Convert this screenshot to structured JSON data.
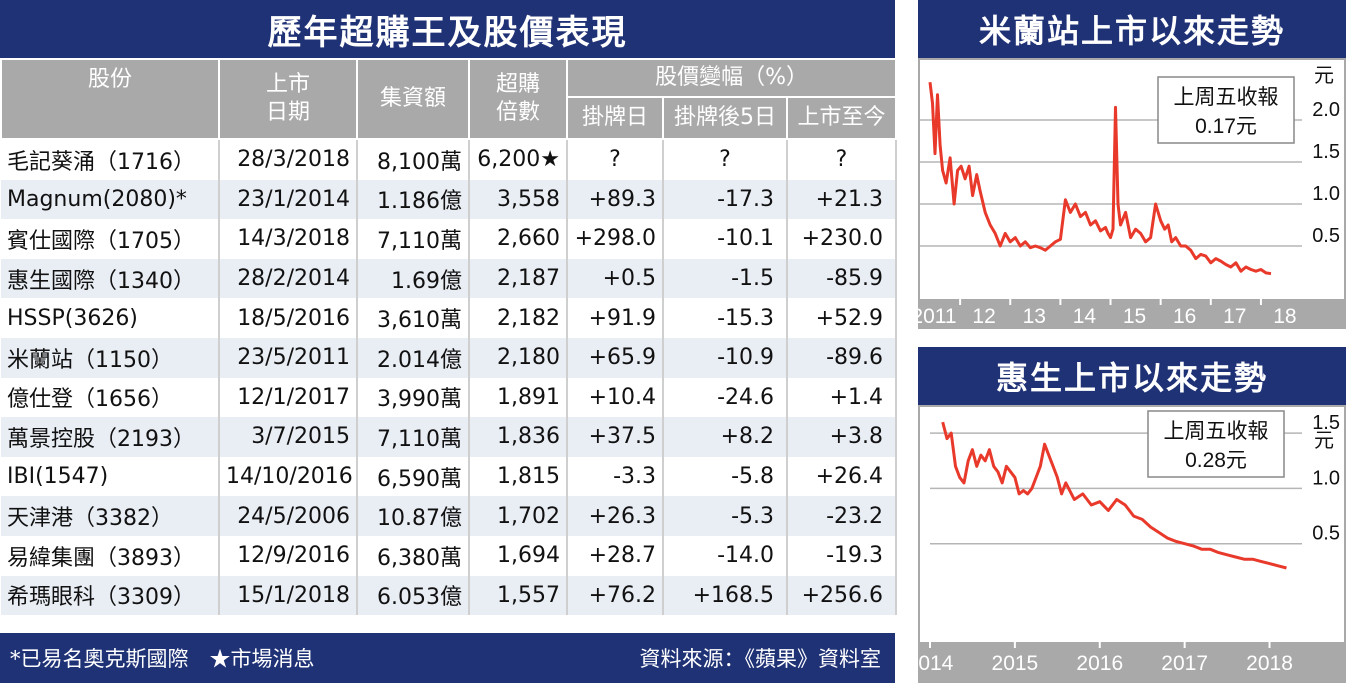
{
  "table": {
    "title": "歷年超購王及股價表現",
    "headers": {
      "stock": "股份",
      "listing_date": [
        "上市",
        "日期"
      ],
      "amount": "集資額",
      "oversub": [
        "超購",
        "倍數"
      ],
      "change_group": "股價變幅（%）",
      "change_cols": [
        "掛牌日",
        "掛牌後5日",
        "上市至今"
      ]
    },
    "rows": [
      {
        "name": "毛記葵涌（1716）",
        "date": "28/3/2018",
        "amount": "8,100萬",
        "oversub": "6,200★",
        "d1": "?",
        "d5": "?",
        "since": "?"
      },
      {
        "name": "Magnum(2080)*",
        "date": "23/1/2014",
        "amount": "1.186億",
        "oversub": "3,558",
        "d1": "+89.3",
        "d5": "-17.3",
        "since": "+21.3"
      },
      {
        "name": "賓仕國際（1705）",
        "date": "14/3/2018",
        "amount": "7,110萬",
        "oversub": "2,660",
        "d1": "+298.0",
        "d5": "-10.1",
        "since": "+230.0"
      },
      {
        "name": "惠生國際（1340）",
        "date": "28/2/2014",
        "amount": "1.69億",
        "oversub": "2,187",
        "d1": "+0.5",
        "d5": "-1.5",
        "since": "-85.9"
      },
      {
        "name": "HSSP(3626)",
        "date": "18/5/2016",
        "amount": "3,610萬",
        "oversub": "2,182",
        "d1": "+91.9",
        "d5": "-15.3",
        "since": "+52.9"
      },
      {
        "name": "米蘭站（1150）",
        "date": "23/5/2011",
        "amount": "2.014億",
        "oversub": "2,180",
        "d1": "+65.9",
        "d5": "-10.9",
        "since": "-89.6"
      },
      {
        "name": "億仕登（1656）",
        "date": "12/1/2017",
        "amount": "3,990萬",
        "oversub": "1,891",
        "d1": "+10.4",
        "d5": "-24.6",
        "since": "+1.4"
      },
      {
        "name": "萬景控股（2193）",
        "date": "3/7/2015",
        "amount": "7,110萬",
        "oversub": "1,836",
        "d1": "+37.5",
        "d5": "+8.2",
        "since": "+3.8"
      },
      {
        "name": "IBI(1547)",
        "date": "14/10/2016",
        "amount": "6,590萬",
        "oversub": "1,815",
        "d1": "-3.3",
        "d5": "-5.8",
        "since": "+26.4"
      },
      {
        "name": "天津港（3382）",
        "date": "24/5/2006",
        "amount": "10.87億",
        "oversub": "1,702",
        "d1": "+26.3",
        "d5": "-5.3",
        "since": "-23.2"
      },
      {
        "name": "易緯集團（3893）",
        "date": "12/9/2016",
        "amount": "6,380萬",
        "oversub": "1,694",
        "d1": "+28.7",
        "d5": "-14.0",
        "since": "-19.3"
      },
      {
        "name": "希瑪眼科（3309）",
        "date": "15/1/2018",
        "amount": "6.053億",
        "oversub": "1,557",
        "d1": "+76.2",
        "d5": "+168.5",
        "since": "+256.6"
      }
    ],
    "footnote_left": "*已易名奧克斯國際　★市場消息",
    "footnote_right": "資料來源：《蘋果》資料室"
  },
  "chart_data": [
    {
      "type": "line",
      "title": "米蘭站上市以來走勢",
      "ylabel": "元",
      "annotation": [
        "上周五收報",
        "0.17元"
      ],
      "ylim": [
        0,
        2.5
      ],
      "yticks": [
        "0.5",
        "1.0",
        "1.5",
        "2.0"
      ],
      "xtick_labels": [
        "2011",
        "12",
        "13",
        "14",
        "15",
        "16",
        "17",
        "18"
      ],
      "xticks_year": [
        2011,
        2012,
        2013,
        2014,
        2015,
        2016,
        2017,
        2018
      ],
      "color": "#e8392b",
      "series": [
        {
          "x": [
            2011.4,
            2011.45,
            2011.5,
            2011.55,
            2011.6,
            2011.65,
            2011.72,
            2011.8,
            2011.88,
            2011.95,
            2012.02,
            2012.1,
            2012.18,
            2012.25,
            2012.33,
            2012.4,
            2012.5,
            2012.6,
            2012.7,
            2012.8,
            2012.9,
            2013.0,
            2013.1,
            2013.2,
            2013.3,
            2013.4,
            2013.5,
            2013.6,
            2013.7,
            2013.8,
            2013.9,
            2014.0,
            2014.1,
            2014.2,
            2014.3,
            2014.4,
            2014.5,
            2014.6,
            2014.7,
            2014.8,
            2014.9,
            2014.95,
            2015.0,
            2015.05,
            2015.1,
            2015.15,
            2015.2,
            2015.3,
            2015.4,
            2015.5,
            2015.6,
            2015.7,
            2015.8,
            2015.9,
            2016.0,
            2016.08,
            2016.15,
            2016.22,
            2016.3,
            2016.4,
            2016.5,
            2016.6,
            2016.7,
            2016.8,
            2016.9,
            2017.0,
            2017.1,
            2017.2,
            2017.3,
            2017.4,
            2017.5,
            2017.6,
            2017.7,
            2017.8,
            2017.9,
            2018.0,
            2018.1,
            2018.2
          ],
          "values": [
            2.45,
            2.2,
            1.6,
            2.3,
            1.7,
            1.4,
            1.25,
            1.55,
            1.0,
            1.4,
            1.45,
            1.3,
            1.45,
            1.1,
            1.35,
            1.15,
            0.9,
            0.75,
            0.65,
            0.5,
            0.65,
            0.55,
            0.6,
            0.5,
            0.55,
            0.48,
            0.5,
            0.48,
            0.45,
            0.5,
            0.55,
            0.58,
            1.05,
            0.9,
            1.0,
            0.85,
            0.9,
            0.75,
            0.8,
            0.68,
            0.72,
            0.65,
            0.6,
            0.7,
            2.15,
            1.0,
            0.75,
            0.9,
            0.6,
            0.7,
            0.65,
            0.55,
            0.6,
            1.0,
            0.8,
            0.7,
            0.75,
            0.55,
            0.6,
            0.5,
            0.5,
            0.45,
            0.35,
            0.4,
            0.38,
            0.3,
            0.35,
            0.32,
            0.28,
            0.25,
            0.3,
            0.2,
            0.25,
            0.22,
            0.2,
            0.22,
            0.18,
            0.17
          ]
        }
      ]
    },
    {
      "type": "line",
      "title": "惠生上市以來走勢",
      "ylabel": "元",
      "annotation": [
        "上周五收報",
        "0.28元"
      ],
      "ylim": [
        0,
        1.7
      ],
      "yticks": [
        "0.5",
        "1.0",
        "1.5"
      ],
      "xtick_labels": [
        "2014",
        "2015",
        "2016",
        "2017",
        "2018"
      ],
      "xticks_year": [
        2014,
        2015,
        2016,
        2017,
        2018
      ],
      "color": "#e8392b",
      "series": [
        {
          "x": [
            2014.15,
            2014.2,
            2014.25,
            2014.3,
            2014.35,
            2014.4,
            2014.45,
            2014.5,
            2014.55,
            2014.6,
            2014.65,
            2014.7,
            2014.75,
            2014.8,
            2014.85,
            2014.9,
            2014.95,
            2015.0,
            2015.05,
            2015.1,
            2015.15,
            2015.2,
            2015.25,
            2015.3,
            2015.35,
            2015.4,
            2015.45,
            2015.5,
            2015.55,
            2015.6,
            2015.7,
            2015.8,
            2015.9,
            2016.0,
            2016.1,
            2016.2,
            2016.3,
            2016.4,
            2016.5,
            2016.6,
            2016.7,
            2016.8,
            2016.9,
            2017.0,
            2017.1,
            2017.2,
            2017.3,
            2017.4,
            2017.5,
            2017.6,
            2017.7,
            2017.8,
            2017.9,
            2018.0,
            2018.1,
            2018.2
          ],
          "values": [
            1.6,
            1.45,
            1.5,
            1.2,
            1.1,
            1.05,
            1.25,
            1.35,
            1.2,
            1.3,
            1.25,
            1.35,
            1.2,
            1.15,
            1.05,
            1.2,
            1.15,
            1.1,
            0.95,
            0.98,
            0.95,
            1.0,
            1.1,
            1.2,
            1.4,
            1.3,
            1.2,
            1.1,
            0.95,
            1.05,
            0.9,
            0.95,
            0.85,
            0.88,
            0.8,
            0.9,
            0.85,
            0.75,
            0.72,
            0.65,
            0.6,
            0.55,
            0.52,
            0.5,
            0.48,
            0.45,
            0.45,
            0.42,
            0.4,
            0.38,
            0.36,
            0.36,
            0.34,
            0.32,
            0.3,
            0.28
          ]
        }
      ]
    }
  ]
}
